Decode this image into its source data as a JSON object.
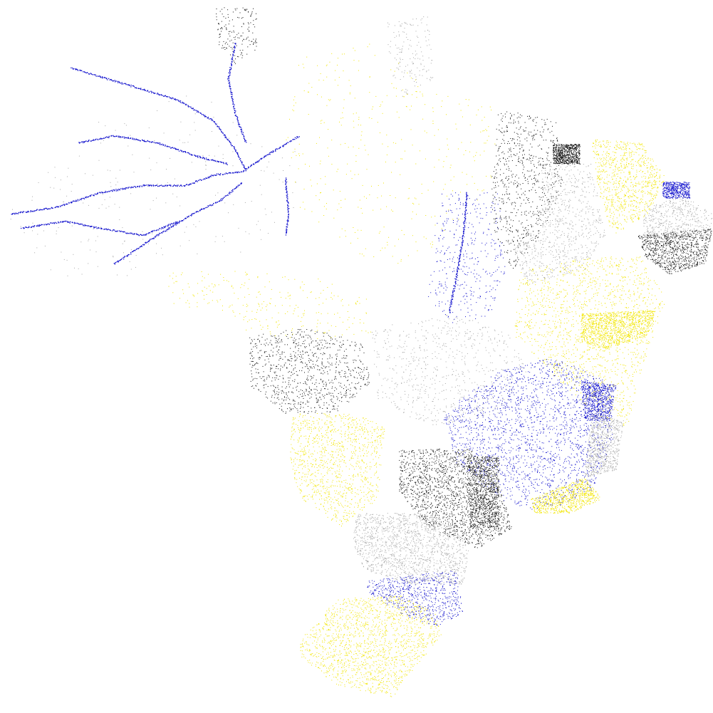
{
  "map": {
    "kind": "dot-map",
    "background": "#ffffff",
    "palette": {
      "blue": "#1010cc",
      "yellow": "#f2e600",
      "black": "#111111",
      "gray": "#a8a8a8",
      "dark_gray": "#555555"
    },
    "labels": []
  }
}
